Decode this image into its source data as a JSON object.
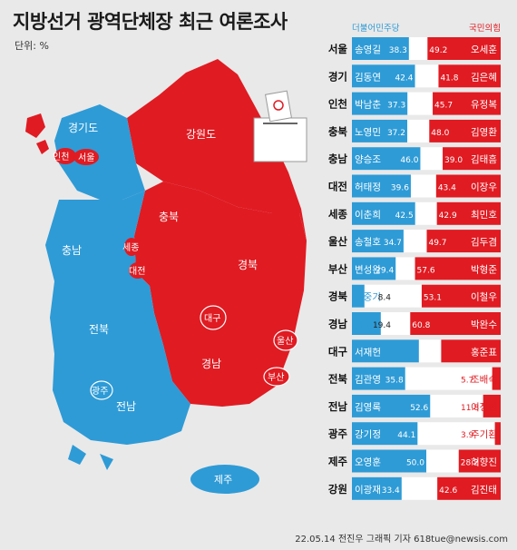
{
  "title": "지방선거 광역단체장 최근 여론조사",
  "unit": "단위: %",
  "footer": "22.05.14 전진우 그래픽 기자 618tue@newsis.com",
  "colors": {
    "dem": "#2e9bd6",
    "ppp": "#e01b22",
    "bg": "#e9e9e9"
  },
  "map_labels": {
    "gyeonggi": "경기도",
    "gangwon": "강원도",
    "incheon": "인천",
    "seoul": "서울",
    "chungbuk": "충북",
    "chungnam": "충남",
    "sejong": "세종",
    "daejeon": "대전",
    "gyeongbuk": "경북",
    "jeonbuk": "전북",
    "daegu": "대구",
    "ulsan": "울산",
    "gyeongnam": "경남",
    "busan": "부산",
    "gwangju": "광주",
    "jeonnam": "전남",
    "jeju": "제주"
  },
  "chart_data": {
    "type": "bar",
    "title": "지방선거 광역단체장 최근 여론조사",
    "unit": "%",
    "series": [
      {
        "name": "더불어민주당",
        "color": "#2e9bd6"
      },
      {
        "name": "국민의힘",
        "color": "#e01b22"
      }
    ],
    "rows": [
      {
        "region": "서울",
        "dem": {
          "name": "송영길",
          "value": 38.3
        },
        "ppp": {
          "name": "오세훈",
          "value": 49.2
        }
      },
      {
        "region": "경기",
        "dem": {
          "name": "김동연",
          "value": 42.4
        },
        "ppp": {
          "name": "김은혜",
          "value": 41.8
        }
      },
      {
        "region": "인천",
        "dem": {
          "name": "박남춘",
          "value": 37.3
        },
        "ppp": {
          "name": "유정복",
          "value": 45.7
        }
      },
      {
        "region": "충북",
        "dem": {
          "name": "노영민",
          "value": 37.2
        },
        "ppp": {
          "name": "김영환",
          "value": 48.0
        }
      },
      {
        "region": "충남",
        "dem": {
          "name": "양승조",
          "value": 46.0
        },
        "ppp": {
          "name": "김태흠",
          "value": 39.0
        }
      },
      {
        "region": "대전",
        "dem": {
          "name": "허태정",
          "value": 39.6
        },
        "ppp": {
          "name": "이장우",
          "value": 43.4
        }
      },
      {
        "region": "세종",
        "dem": {
          "name": "이춘희",
          "value": 42.5
        },
        "ppp": {
          "name": "최민호",
          "value": 42.9
        }
      },
      {
        "region": "울산",
        "dem": {
          "name": "송철호",
          "value": 34.7
        },
        "ppp": {
          "name": "김두겸",
          "value": 49.7
        }
      },
      {
        "region": "부산",
        "dem": {
          "name": "변성완",
          "value": 29.4
        },
        "ppp": {
          "name": "박형준",
          "value": 57.6
        }
      },
      {
        "region": "경북",
        "dem": {
          "name": "오중기",
          "value": 8.4
        },
        "ppp": {
          "name": "이철우",
          "value": 53.1
        }
      },
      {
        "region": "경남",
        "dem": {
          "name": "양문석",
          "value": 19.4
        },
        "ppp": {
          "name": "박완수",
          "value": 60.8
        }
      },
      {
        "region": "대구",
        "dem": {
          "name": "서재헌",
          "value": null
        },
        "ppp": {
          "name": "홍준표",
          "value": null
        }
      },
      {
        "region": "전북",
        "dem": {
          "name": "김관영",
          "value": 35.8
        },
        "ppp": {
          "name": "조배숙",
          "value": 5.7
        }
      },
      {
        "region": "전남",
        "dem": {
          "name": "김영록",
          "value": 52.6
        },
        "ppp": {
          "name": "이정현",
          "value": 11.8
        }
      },
      {
        "region": "광주",
        "dem": {
          "name": "강기정",
          "value": 44.1
        },
        "ppp": {
          "name": "주기환",
          "value": 3.9
        }
      },
      {
        "region": "제주",
        "dem": {
          "name": "오영훈",
          "value": 50.0
        },
        "ppp": {
          "name": "허향진",
          "value": 28.2
        }
      },
      {
        "region": "강원",
        "dem": {
          "name": "이광재",
          "value": 33.4
        },
        "ppp": {
          "name": "김진태",
          "value": 42.6
        }
      }
    ]
  }
}
